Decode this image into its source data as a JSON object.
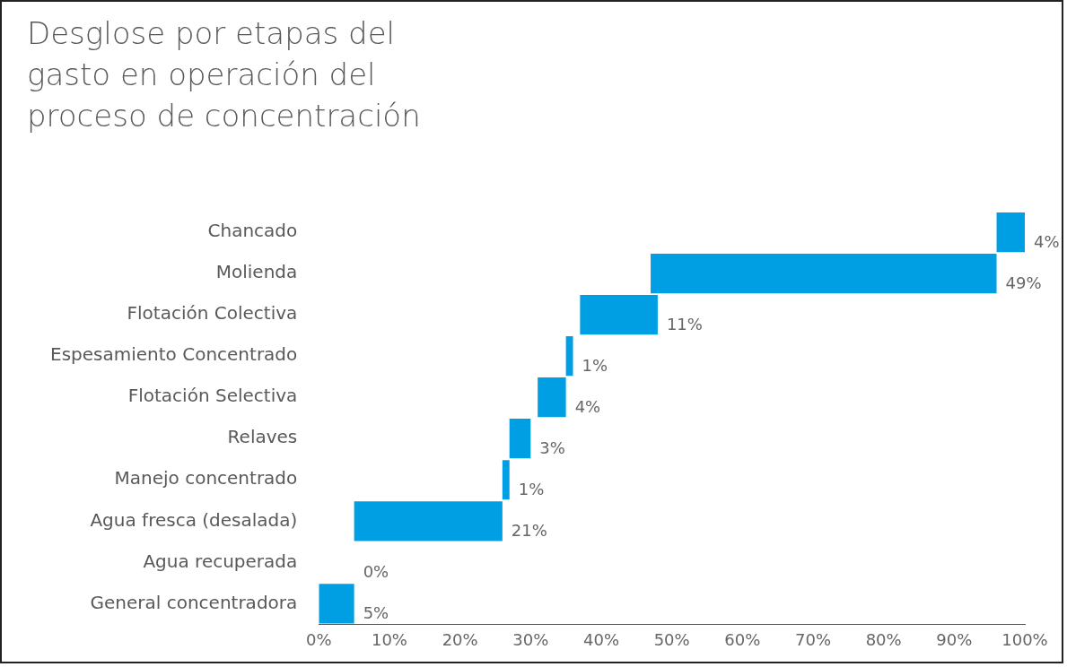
{
  "chart_data": {
    "type": "bar",
    "orientation": "horizontal",
    "title": "Desglose por etapas del gasto en operación del proceso de concentración",
    "categories": [
      "Chancado",
      "Molienda",
      "Flotación Colectiva",
      "Espesamiento Concentrado",
      "Flotación Selectiva",
      "Relaves",
      "Manejo concentrado",
      "Agua fresca (desalada)",
      "Agua recuperada",
      "General concentradora"
    ],
    "values": [
      4,
      49,
      11,
      1,
      4,
      3,
      1,
      21,
      0,
      5
    ],
    "base": [
      96,
      47,
      37,
      35,
      31,
      27,
      26,
      5,
      null,
      0
    ],
    "value_labels": [
      "4%",
      "49%",
      "11%",
      "1%",
      "4%",
      "3%",
      "1%",
      "21%",
      "0%",
      "5%"
    ],
    "color": "#009fe3",
    "xlim": [
      0,
      100
    ],
    "xticks": [
      {
        "value": 0,
        "label": "0%"
      },
      {
        "value": 10,
        "label": "10%"
      },
      {
        "value": 20,
        "label": "20%"
      },
      {
        "value": 30,
        "label": "30%"
      },
      {
        "value": 40,
        "label": "40%"
      },
      {
        "value": 50,
        "label": "50%"
      },
      {
        "value": 60,
        "label": "60%"
      },
      {
        "value": 70,
        "label": "70%"
      },
      {
        "value": 80,
        "label": "80%"
      },
      {
        "value": 90,
        "label": "90%"
      },
      {
        "value": 100,
        "label": "100%"
      }
    ],
    "grid": false,
    "legend": false
  }
}
